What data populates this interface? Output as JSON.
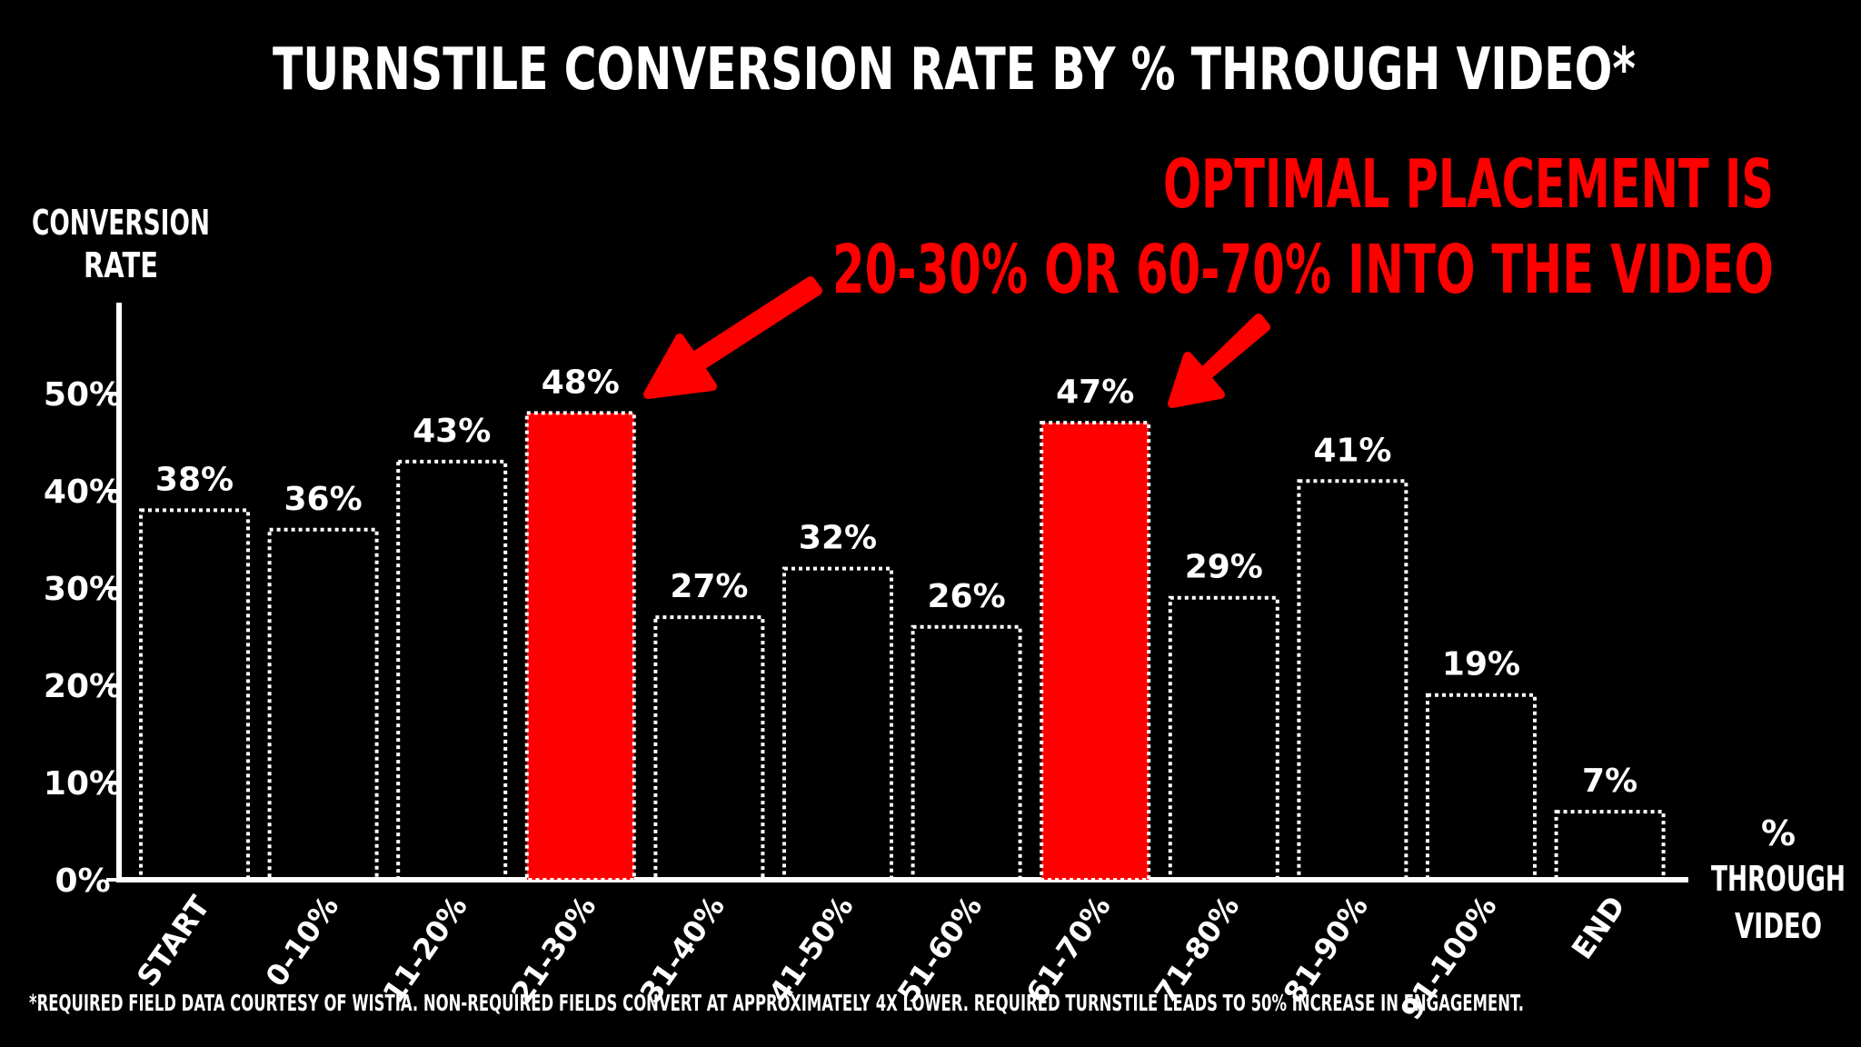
{
  "chart_data": {
    "type": "bar",
    "title": "TURNSTILE CONVERSION RATE BY % THROUGH VIDEO*",
    "ylabel": [
      "CONVERSION",
      "RATE"
    ],
    "xlabel": [
      "%",
      "THROUGH",
      "VIDEO"
    ],
    "ylim": [
      0,
      50
    ],
    "yticks": [
      0,
      10,
      20,
      30,
      40,
      50
    ],
    "ytick_labels": [
      "0%",
      "10%",
      "20%",
      "30%",
      "40%",
      "50%"
    ],
    "categories": [
      "START",
      "0-10%",
      "11-20%",
      "21-30%",
      "31-40%",
      "41-50%",
      "51-60%",
      "61-70%",
      "71-80%",
      "81-90%",
      "91-100%",
      "END"
    ],
    "values": [
      38,
      36,
      43,
      48,
      27,
      32,
      26,
      47,
      29,
      41,
      19,
      7
    ],
    "value_labels": [
      "38%",
      "36%",
      "43%",
      "48%",
      "27%",
      "32%",
      "26%",
      "47%",
      "29%",
      "41%",
      "19%",
      "7%"
    ],
    "highlighted": [
      "21-30%",
      "61-70%"
    ],
    "annotation": [
      "OPTIMAL PLACEMENT IS",
      "20-30% OR 60-70% INTO THE VIDEO"
    ],
    "footnote": "*REQUIRED FIELD DATA COURTESY OF WISTIA. NON-REQUIRED FIELDS CONVERT AT APPROXIMATELY 4X LOWER. REQUIRED TURNSTILE LEADS TO 50% INCREASE IN ENGAGEMENT.",
    "grid": false,
    "legend": "none",
    "colors": {
      "background": "#000000",
      "foreground": "#ffffff",
      "highlight": "#ff0000"
    }
  }
}
